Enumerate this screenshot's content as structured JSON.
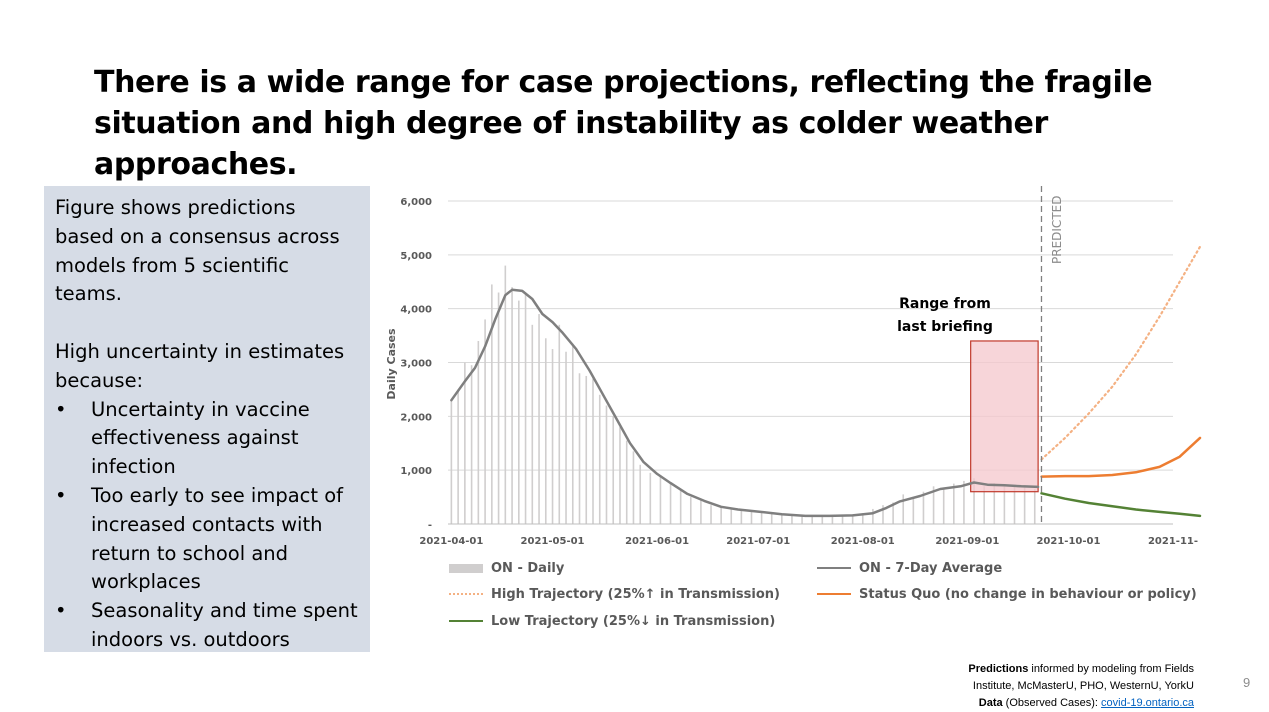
{
  "slide": {
    "title_line1": "There is a wide range for case projections, reflecting the fragile",
    "title_line2": "situation and high degree of instability as colder weather approaches.",
    "page_number": "9"
  },
  "panel": {
    "intro": "Figure shows predictions based on a consensus across models from 5 scientific teams.",
    "uncertainty_heading": "High uncertainty in estimates because:",
    "bullet_char": "•",
    "bullets": [
      "Uncertainty in vaccine effectiveness against infection",
      "Too early to see impact of increased contacts with return to school and workplaces",
      "Seasonality and time spent indoors vs. outdoors"
    ]
  },
  "footer": {
    "line1_bold": "Predictions",
    "line1_rest": " informed by modeling from Fields",
    "line2": "Institute, McMasterU, PHO, WesternU, YorkU",
    "line3_bold": "Data",
    "line3_rest": " (Observed Cases): ",
    "line3_link": "covid-19.ontario.ca"
  },
  "chart_data": {
    "type": "line",
    "ylabel": "Daily Cases",
    "ylim": [
      0,
      6000
    ],
    "y_ticks": [
      0,
      1000,
      2000,
      3000,
      4000,
      5000,
      6000
    ],
    "y_tick_labels": [
      "-",
      "1,000",
      "2,000",
      "3,000",
      "4,000",
      "5,000",
      "6,000"
    ],
    "x_start": "2021-03-31",
    "x_end": "2021-11-01",
    "x_tick_labels": [
      "2021-04-01",
      "2021-05-01",
      "2021-06-01",
      "2021-07-01",
      "2021-08-01",
      "2021-09-01",
      "2021-10-01",
      "2021-11-"
    ],
    "x_tick_dates": [
      "2021-04-01",
      "2021-05-01",
      "2021-06-01",
      "2021-07-01",
      "2021-08-01",
      "2021-09-01",
      "2021-10-01",
      "2021-11-01"
    ],
    "prediction_start": "2021-09-23",
    "predicted_label": "PREDICTED",
    "grid": true,
    "range_box": {
      "label_line1": "Range from",
      "label_line2": "last briefing",
      "x_from": "2021-09-02",
      "x_to": "2021-09-22",
      "y_low": 600,
      "y_high": 3400
    },
    "legend_labels": {
      "daily": "ON - Daily",
      "avg7": "ON - 7-Day Average",
      "high": "High Trajectory (25%↑ in Transmission)",
      "status_quo": "Status Quo (no change in behaviour or policy)",
      "low": "Low Trajectory (25%↓ in Transmission)"
    },
    "colors": {
      "daily": "#d0cece",
      "avg7": "#7f7f7f",
      "high": "#f4b183",
      "status_quo": "#ed7d31",
      "low": "#548235",
      "range_fill": "#f4c7cc",
      "range_stroke": "#c0392b",
      "grid": "#d9d9d9",
      "predicted_line": "#808080"
    },
    "series": [
      {
        "key": "avg7",
        "points": [
          [
            "2021-04-01",
            2300
          ],
          [
            "2021-04-05",
            2650
          ],
          [
            "2021-04-08",
            2900
          ],
          [
            "2021-04-11",
            3300
          ],
          [
            "2021-04-14",
            3800
          ],
          [
            "2021-04-17",
            4250
          ],
          [
            "2021-04-19",
            4350
          ],
          [
            "2021-04-22",
            4330
          ],
          [
            "2021-04-25",
            4180
          ],
          [
            "2021-04-28",
            3900
          ],
          [
            "2021-05-01",
            3750
          ],
          [
            "2021-05-04",
            3550
          ],
          [
            "2021-05-08",
            3250
          ],
          [
            "2021-05-12",
            2850
          ],
          [
            "2021-05-16",
            2400
          ],
          [
            "2021-05-20",
            1950
          ],
          [
            "2021-05-24",
            1500
          ],
          [
            "2021-05-28",
            1150
          ],
          [
            "2021-06-01",
            930
          ],
          [
            "2021-06-05",
            760
          ],
          [
            "2021-06-10",
            560
          ],
          [
            "2021-06-15",
            430
          ],
          [
            "2021-06-20",
            320
          ],
          [
            "2021-06-25",
            270
          ],
          [
            "2021-07-01",
            230
          ],
          [
            "2021-07-08",
            180
          ],
          [
            "2021-07-15",
            150
          ],
          [
            "2021-07-22",
            150
          ],
          [
            "2021-07-29",
            160
          ],
          [
            "2021-08-04",
            200
          ],
          [
            "2021-08-08",
            300
          ],
          [
            "2021-08-12",
            420
          ],
          [
            "2021-08-18",
            520
          ],
          [
            "2021-08-24",
            650
          ],
          [
            "2021-08-30",
            700
          ],
          [
            "2021-09-03",
            770
          ],
          [
            "2021-09-07",
            730
          ],
          [
            "2021-09-12",
            720
          ],
          [
            "2021-09-17",
            700
          ],
          [
            "2021-09-22",
            690
          ]
        ]
      },
      {
        "key": "daily",
        "points": [
          [
            "2021-04-01",
            2300
          ],
          [
            "2021-04-03",
            2500
          ],
          [
            "2021-04-05",
            3000
          ],
          [
            "2021-04-07",
            2950
          ],
          [
            "2021-04-09",
            3400
          ],
          [
            "2021-04-11",
            3800
          ],
          [
            "2021-04-13",
            4450
          ],
          [
            "2021-04-15",
            4300
          ],
          [
            "2021-04-17",
            4800
          ],
          [
            "2021-04-19",
            4400
          ],
          [
            "2021-04-21",
            4150
          ],
          [
            "2021-04-23",
            4300
          ],
          [
            "2021-04-25",
            3700
          ],
          [
            "2021-04-27",
            3900
          ],
          [
            "2021-04-29",
            3450
          ],
          [
            "2021-05-01",
            3250
          ],
          [
            "2021-05-03",
            3700
          ],
          [
            "2021-05-05",
            3200
          ],
          [
            "2021-05-07",
            3300
          ],
          [
            "2021-05-09",
            2800
          ],
          [
            "2021-05-11",
            2750
          ],
          [
            "2021-05-13",
            2700
          ],
          [
            "2021-05-15",
            2400
          ],
          [
            "2021-05-17",
            2200
          ],
          [
            "2021-05-19",
            2000
          ],
          [
            "2021-05-21",
            1800
          ],
          [
            "2021-05-23",
            1550
          ],
          [
            "2021-05-25",
            1350
          ],
          [
            "2021-05-27",
            1100
          ],
          [
            "2021-05-30",
            950
          ],
          [
            "2021-06-02",
            900
          ],
          [
            "2021-06-05",
            750
          ],
          [
            "2021-06-08",
            650
          ],
          [
            "2021-06-11",
            500
          ],
          [
            "2021-06-14",
            450
          ],
          [
            "2021-06-17",
            350
          ],
          [
            "2021-06-20",
            320
          ],
          [
            "2021-06-23",
            290
          ],
          [
            "2021-06-26",
            270
          ],
          [
            "2021-06-29",
            260
          ],
          [
            "2021-07-02",
            220
          ],
          [
            "2021-07-05",
            200
          ],
          [
            "2021-07-08",
            180
          ],
          [
            "2021-07-11",
            170
          ],
          [
            "2021-07-14",
            150
          ],
          [
            "2021-07-17",
            150
          ],
          [
            "2021-07-20",
            140
          ],
          [
            "2021-07-23",
            160
          ],
          [
            "2021-07-26",
            150
          ],
          [
            "2021-07-29",
            180
          ],
          [
            "2021-08-01",
            200
          ],
          [
            "2021-08-04",
            280
          ],
          [
            "2021-08-07",
            350
          ],
          [
            "2021-08-10",
            400
          ],
          [
            "2021-08-13",
            550
          ],
          [
            "2021-08-16",
            500
          ],
          [
            "2021-08-19",
            600
          ],
          [
            "2021-08-22",
            700
          ],
          [
            "2021-08-25",
            650
          ],
          [
            "2021-08-28",
            750
          ],
          [
            "2021-08-31",
            800
          ],
          [
            "2021-09-03",
            850
          ],
          [
            "2021-09-06",
            700
          ],
          [
            "2021-09-09",
            760
          ],
          [
            "2021-09-12",
            740
          ],
          [
            "2021-09-15",
            700
          ],
          [
            "2021-09-18",
            680
          ],
          [
            "2021-09-21",
            650
          ]
        ]
      },
      {
        "key": "high",
        "points": [
          [
            "2021-09-23",
            1200
          ],
          [
            "2021-09-30",
            1600
          ],
          [
            "2021-10-07",
            2050
          ],
          [
            "2021-10-14",
            2550
          ],
          [
            "2021-10-21",
            3150
          ],
          [
            "2021-10-28",
            3850
          ],
          [
            "2021-11-03",
            4500
          ],
          [
            "2021-11-09",
            5150
          ]
        ]
      },
      {
        "key": "status_quo",
        "points": [
          [
            "2021-09-23",
            880
          ],
          [
            "2021-09-30",
            890
          ],
          [
            "2021-10-07",
            890
          ],
          [
            "2021-10-14",
            910
          ],
          [
            "2021-10-21",
            960
          ],
          [
            "2021-10-28",
            1060
          ],
          [
            "2021-11-03",
            1250
          ],
          [
            "2021-11-09",
            1600
          ]
        ]
      },
      {
        "key": "low",
        "points": [
          [
            "2021-09-23",
            570
          ],
          [
            "2021-09-30",
            470
          ],
          [
            "2021-10-07",
            390
          ],
          [
            "2021-10-14",
            330
          ],
          [
            "2021-10-21",
            270
          ],
          [
            "2021-10-28",
            225
          ],
          [
            "2021-11-03",
            190
          ],
          [
            "2021-11-09",
            150
          ]
        ]
      }
    ]
  }
}
